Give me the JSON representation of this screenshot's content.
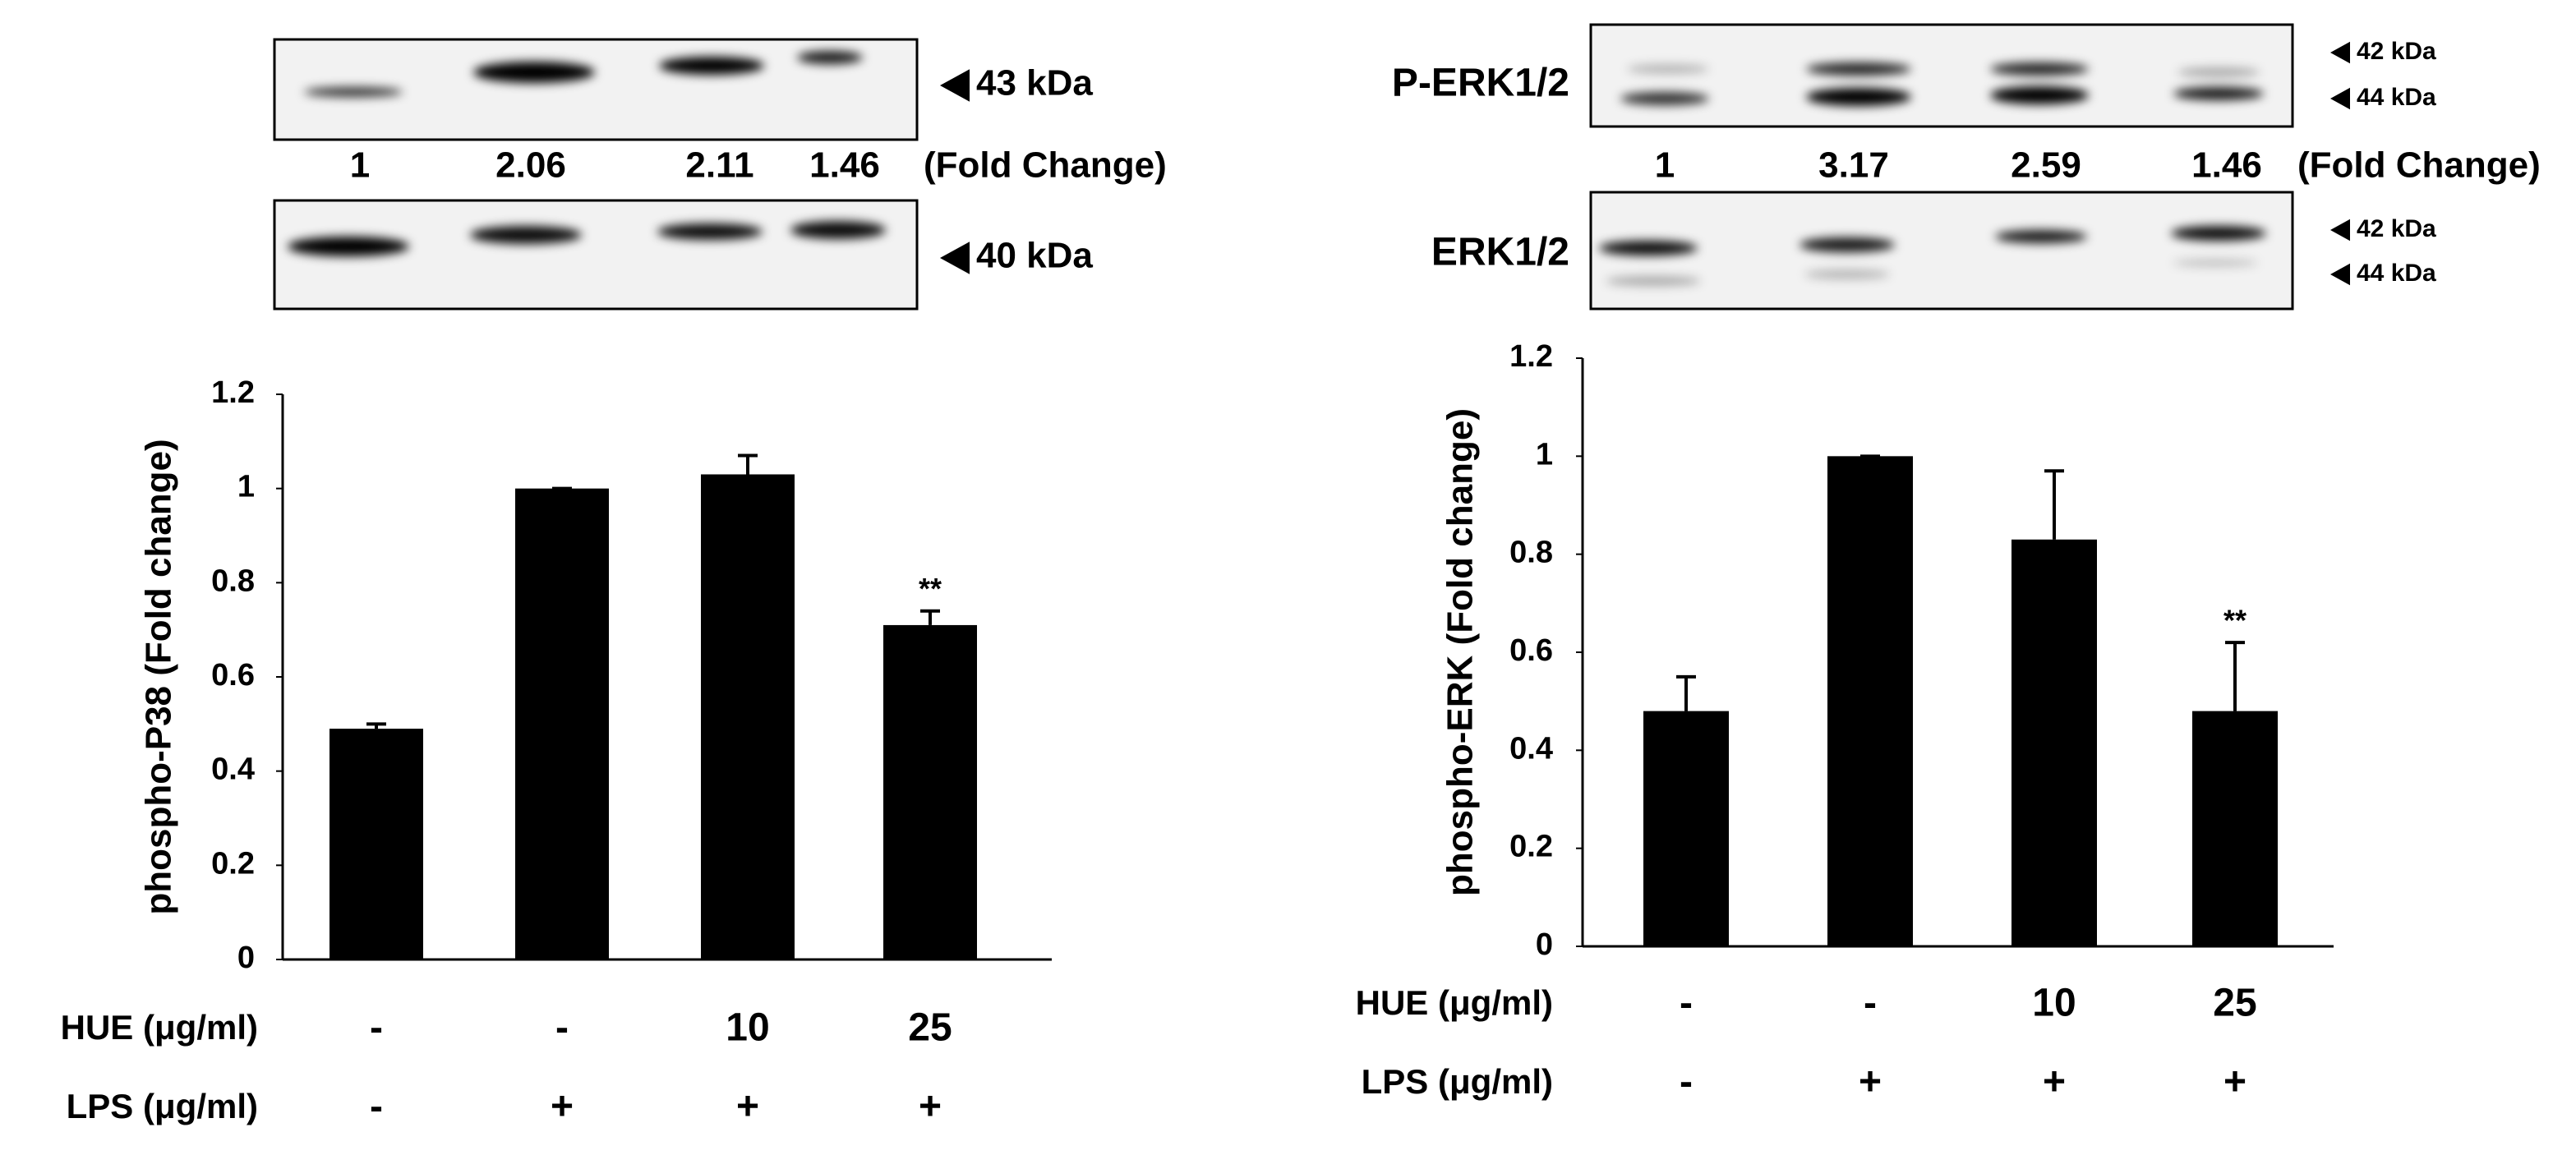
{
  "blots": [
    {
      "upper": {
        "markers": [
          "43 kDa"
        ]
      },
      "lower": {
        "markers": [
          "40 kDa"
        ]
      },
      "fold_changes": [
        1,
        2.06,
        2.11,
        1.46
      ],
      "fold_label": "(Fold Change)"
    },
    {
      "upper": {
        "label": "P-ERK1/2",
        "markers": [
          "42 kDa",
          "44 kDa"
        ]
      },
      "lower": {
        "label": "ERK1/2",
        "markers": [
          "42 kDa",
          "44 kDa"
        ]
      },
      "fold_changes": [
        1,
        3.17,
        2.59,
        1.46
      ],
      "fold_label": "(Fold Change)"
    }
  ],
  "chart_data": [
    {
      "type": "bar",
      "y_label": "phospho-P38 (Fold change)",
      "color": "#000000",
      "values": [
        0.49,
        1.0,
        1.03,
        0.71
      ],
      "errors": [
        0.01,
        0.0,
        0.04,
        0.03
      ],
      "annotations": [
        null,
        null,
        null,
        "**"
      ],
      "ylim": [
        0,
        1.2
      ],
      "yticks": [
        0,
        0.2,
        0.4,
        0.6,
        0.8,
        1,
        1.2
      ],
      "treatment_rows": [
        {
          "label": "HUE (μg/ml)",
          "values": [
            "-",
            "-",
            "10",
            "25"
          ]
        },
        {
          "label": "LPS (μg/ml)",
          "values": [
            "-",
            "+",
            "+",
            "+"
          ]
        }
      ]
    },
    {
      "type": "bar",
      "y_label": "phospho-ERK  (Fold change)",
      "color": "#000000",
      "values": [
        0.48,
        1.0,
        0.83,
        0.48
      ],
      "errors": [
        0.07,
        0.0,
        0.14,
        0.14
      ],
      "annotations": [
        null,
        null,
        null,
        "**"
      ],
      "ylim": [
        0,
        1.2
      ],
      "yticks": [
        0,
        0.2,
        0.4,
        0.6,
        0.8,
        1,
        1.2
      ],
      "treatment_rows": [
        {
          "label": "HUE (μg/ml)",
          "values": [
            "-",
            "-",
            "10",
            "25"
          ]
        },
        {
          "label": "LPS (μg/ml)",
          "values": [
            "-",
            "+",
            "+",
            "+"
          ]
        }
      ]
    }
  ]
}
